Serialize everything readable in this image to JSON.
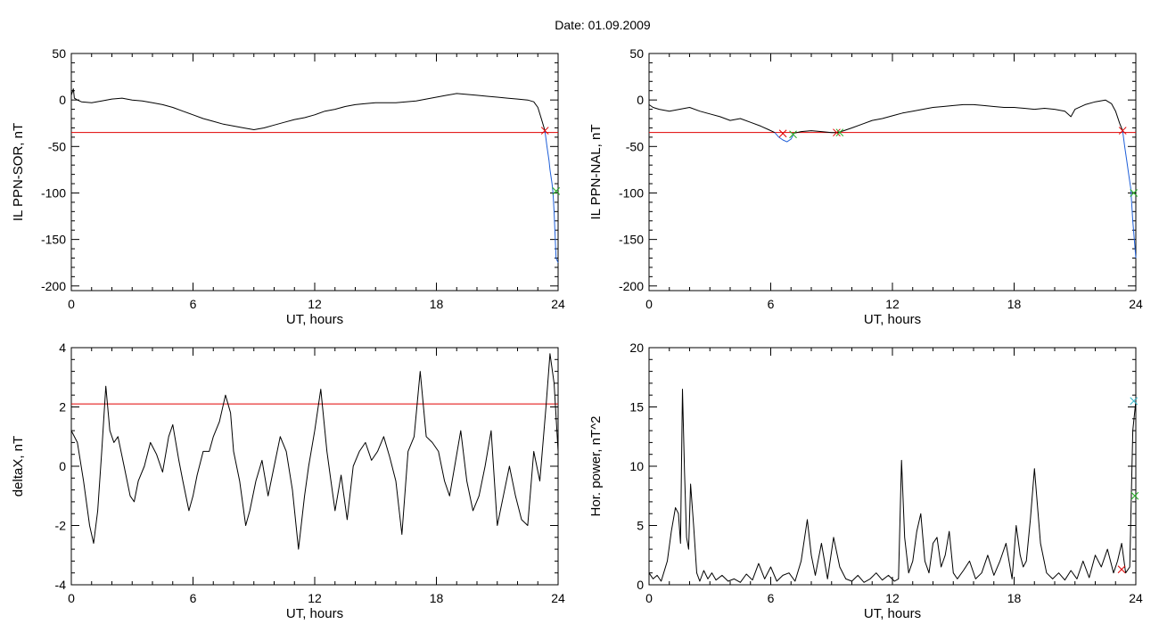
{
  "figure": {
    "title": "Date:  01.09.2009"
  },
  "colors": {
    "series": "#000000",
    "threshold": "#e00000",
    "segment": "#1f5fd8",
    "marker_green": "#22aa22",
    "marker_cyan": "#33b5c8"
  },
  "chart_data": [
    {
      "type": "line",
      "ylabel": "IL PPN-SOR, nT",
      "xlabel": "UT, hours",
      "xlim": [
        0,
        24
      ],
      "ylim": [
        -205,
        50
      ],
      "xticks": [
        0,
        6,
        12,
        18,
        24
      ],
      "yticks": [
        50,
        0,
        -50,
        -100,
        -150,
        -200
      ],
      "grid": false,
      "threshold": -35,
      "series": [
        {
          "color": "#000000",
          "x": [
            0,
            0.1,
            0.15,
            0.3,
            0.5,
            1.0,
            1.5,
            2.0,
            2.5,
            3.0,
            3.5,
            4.0,
            4.5,
            5.0,
            5.5,
            6.0,
            6.5,
            7.0,
            7.5,
            8.0,
            8.5,
            9.0,
            9.5,
            10.0,
            10.5,
            11.0,
            11.5,
            12.0,
            12.5,
            13.0,
            13.5,
            14.0,
            14.5,
            15.0,
            15.5,
            16.0,
            16.5,
            17.0,
            17.5,
            18.0,
            18.5,
            19.0,
            19.5,
            20.0,
            20.5,
            21.0,
            21.5,
            22.0,
            22.5,
            22.8,
            23.0,
            23.2,
            23.35
          ],
          "y": [
            5,
            12,
            2,
            0,
            -2,
            -3,
            -1,
            1,
            2,
            0,
            -1,
            -3,
            -5,
            -8,
            -12,
            -16,
            -20,
            -23,
            -26,
            -28,
            -30,
            -32,
            -30,
            -27,
            -24,
            -21,
            -19,
            -16,
            -12,
            -10,
            -7,
            -5,
            -4,
            -3,
            -3,
            -3,
            -2,
            -1,
            1,
            3,
            5,
            7,
            6,
            5,
            4,
            3,
            2,
            1,
            0,
            -2,
            -8,
            -22,
            -33
          ]
        },
        {
          "color": "#1f5fd8",
          "x": [
            23.35,
            23.45,
            23.55,
            23.6,
            23.7,
            23.75,
            23.8,
            23.9,
            24.0
          ],
          "y": [
            -33,
            -50,
            -65,
            -75,
            -90,
            -100,
            -120,
            -170,
            -175
          ]
        }
      ],
      "markers": [
        {
          "x": 23.35,
          "y": -33,
          "symbol": "x",
          "color": "#e00000"
        },
        {
          "x": 23.9,
          "y": -98,
          "symbol": "x",
          "color": "#22aa22"
        }
      ]
    },
    {
      "type": "line",
      "ylabel": "IL PPN-NAL, nT",
      "xlabel": "UT, hours",
      "xlim": [
        0,
        24
      ],
      "ylim": [
        -205,
        50
      ],
      "xticks": [
        0,
        6,
        12,
        18,
        24
      ],
      "yticks": [
        50,
        0,
        -50,
        -100,
        -150,
        -200
      ],
      "grid": false,
      "threshold": -35,
      "series": [
        {
          "color": "#000000",
          "x": [
            0,
            0.2,
            0.5,
            1.0,
            1.5,
            2.0,
            2.5,
            3.0,
            3.5,
            4.0,
            4.5,
            5.0,
            5.5,
            5.9,
            6.2
          ],
          "y": [
            -5,
            -8,
            -10,
            -12,
            -10,
            -8,
            -12,
            -15,
            -18,
            -22,
            -20,
            -24,
            -28,
            -32,
            -35
          ]
        },
        {
          "color": "#1f5fd8",
          "x": [
            6.2,
            6.4,
            6.6,
            6.8,
            7.0,
            7.1
          ],
          "y": [
            -35,
            -40,
            -43,
            -45,
            -42,
            -38
          ]
        },
        {
          "color": "#000000",
          "x": [
            7.1,
            7.5,
            8.0,
            8.5,
            9.0,
            9.3,
            9.6,
            10.0,
            10.5,
            11.0,
            11.5,
            12.0,
            12.5,
            13.0,
            13.5,
            14.0,
            14.5,
            15.0,
            15.5,
            16.0,
            16.5,
            17.0,
            17.5,
            18.0,
            18.5,
            19.0,
            19.5,
            20.0,
            20.5,
            20.8,
            21.0,
            21.5,
            22.0,
            22.5,
            22.8,
            23.0,
            23.2,
            23.35
          ],
          "y": [
            -36,
            -34,
            -33,
            -34,
            -35,
            -35,
            -33,
            -30,
            -26,
            -22,
            -20,
            -17,
            -14,
            -12,
            -10,
            -8,
            -7,
            -6,
            -5,
            -5,
            -6,
            -7,
            -8,
            -8,
            -9,
            -10,
            -9,
            -10,
            -12,
            -18,
            -10,
            -5,
            -2,
            0,
            -4,
            -12,
            -25,
            -33
          ]
        },
        {
          "color": "#1f5fd8",
          "x": [
            23.35,
            23.45,
            23.55,
            23.65,
            23.75,
            23.85,
            24.0
          ],
          "y": [
            -33,
            -50,
            -65,
            -80,
            -95,
            -130,
            -170
          ]
        }
      ],
      "markers": [
        {
          "x": 6.6,
          "y": -36,
          "symbol": "x",
          "color": "#e00000"
        },
        {
          "x": 7.1,
          "y": -37,
          "symbol": "x",
          "color": "#22aa22"
        },
        {
          "x": 9.25,
          "y": -35,
          "symbol": "x",
          "color": "#e00000"
        },
        {
          "x": 9.4,
          "y": -35,
          "symbol": "x",
          "color": "#22aa22"
        },
        {
          "x": 23.35,
          "y": -33,
          "symbol": "x",
          "color": "#e00000"
        },
        {
          "x": 23.9,
          "y": -100,
          "symbol": "x",
          "color": "#22aa22"
        }
      ]
    },
    {
      "type": "line",
      "ylabel": "deltaX, nT",
      "xlabel": "UT, hours",
      "xlim": [
        0,
        24
      ],
      "ylim": [
        -4,
        4
      ],
      "xticks": [
        0,
        6,
        12,
        18,
        24
      ],
      "yticks": [
        4,
        2,
        0,
        -2,
        -4
      ],
      "grid": false,
      "threshold": 2.1,
      "series": [
        {
          "color": "#000000",
          "x": [
            0,
            0.3,
            0.6,
            0.9,
            1.1,
            1.3,
            1.5,
            1.7,
            1.9,
            2.1,
            2.3,
            2.6,
            2.9,
            3.1,
            3.3,
            3.6,
            3.9,
            4.2,
            4.5,
            4.8,
            5.0,
            5.3,
            5.5,
            5.8,
            6.0,
            6.2,
            6.5,
            6.8,
            7.0,
            7.3,
            7.6,
            7.85,
            8.0,
            8.3,
            8.6,
            8.8,
            9.1,
            9.4,
            9.7,
            10.0,
            10.3,
            10.6,
            10.9,
            11.2,
            11.5,
            11.7,
            12.0,
            12.3,
            12.6,
            12.8,
            13.0,
            13.3,
            13.6,
            13.9,
            14.2,
            14.5,
            14.8,
            15.1,
            15.4,
            15.7,
            16.0,
            16.3,
            16.6,
            16.9,
            17.2,
            17.5,
            17.8,
            18.1,
            18.4,
            18.65,
            18.9,
            19.2,
            19.5,
            19.8,
            20.1,
            20.4,
            20.7,
            21.0,
            21.3,
            21.6,
            21.9,
            22.2,
            22.5,
            22.8,
            23.1,
            23.4,
            23.6,
            23.8,
            24.0
          ],
          "y": [
            1.2,
            0.8,
            -0.5,
            -2.0,
            -2.6,
            -1.5,
            0.5,
            2.7,
            1.2,
            0.8,
            1.0,
            0.0,
            -1.0,
            -1.2,
            -0.5,
            0.0,
            0.8,
            0.4,
            -0.2,
            1.0,
            1.4,
            0.2,
            -0.5,
            -1.5,
            -1.0,
            -0.3,
            0.5,
            0.5,
            1.0,
            1.5,
            2.4,
            1.8,
            0.5,
            -0.5,
            -2.0,
            -1.5,
            -0.5,
            0.2,
            -1.0,
            0.0,
            1.0,
            0.5,
            -0.8,
            -2.8,
            -1.0,
            0.0,
            1.2,
            2.6,
            0.5,
            -0.5,
            -1.5,
            -0.3,
            -1.8,
            0.0,
            0.5,
            0.8,
            0.2,
            0.5,
            1.0,
            0.3,
            -0.5,
            -2.3,
            0.5,
            1.0,
            3.2,
            1.0,
            0.8,
            0.5,
            -0.5,
            -1.0,
            0.0,
            1.2,
            -0.5,
            -1.5,
            -1.0,
            0.0,
            1.2,
            -2.0,
            -1.0,
            0.0,
            -1.0,
            -1.8,
            -2.0,
            0.5,
            -0.5,
            2.0,
            3.8,
            2.8,
            0.5
          ]
        }
      ],
      "markers": []
    },
    {
      "type": "line",
      "ylabel": "Hor. power, nT^2",
      "xlabel": "UT, hours",
      "xlim": [
        0,
        24
      ],
      "ylim": [
        0,
        20
      ],
      "xticks": [
        0,
        6,
        12,
        18,
        24
      ],
      "yticks": [
        20,
        15,
        10,
        5,
        0
      ],
      "grid": false,
      "series": [
        {
          "color": "#000000",
          "x": [
            0,
            0.2,
            0.4,
            0.6,
            0.9,
            1.1,
            1.3,
            1.45,
            1.55,
            1.65,
            1.75,
            1.85,
            1.95,
            2.05,
            2.2,
            2.35,
            2.5,
            2.7,
            2.9,
            3.1,
            3.3,
            3.6,
            3.9,
            4.2,
            4.5,
            4.8,
            5.1,
            5.4,
            5.7,
            6.0,
            6.3,
            6.6,
            6.9,
            7.2,
            7.5,
            7.8,
            8.0,
            8.2,
            8.5,
            8.8,
            9.1,
            9.4,
            9.7,
            10.0,
            10.3,
            10.6,
            10.9,
            11.2,
            11.5,
            11.8,
            12.1,
            12.3,
            12.45,
            12.6,
            12.8,
            13.0,
            13.2,
            13.4,
            13.6,
            13.8,
            14.0,
            14.2,
            14.4,
            14.6,
            14.8,
            15.0,
            15.2,
            15.5,
            15.8,
            16.1,
            16.4,
            16.7,
            17.0,
            17.3,
            17.6,
            17.9,
            18.1,
            18.3,
            18.45,
            18.6,
            18.8,
            19.0,
            19.3,
            19.6,
            19.9,
            20.2,
            20.5,
            20.8,
            21.1,
            21.4,
            21.7,
            22.0,
            22.3,
            22.6,
            22.9,
            23.1,
            23.3,
            23.5,
            23.7,
            23.85,
            24.0
          ],
          "y": [
            1.0,
            0.5,
            0.8,
            0.3,
            2.0,
            4.5,
            6.5,
            6.0,
            3.5,
            16.5,
            9.5,
            4.0,
            3.0,
            8.5,
            5.0,
            1.0,
            0.3,
            1.2,
            0.5,
            1.0,
            0.4,
            0.8,
            0.3,
            0.5,
            0.2,
            0.9,
            0.4,
            1.8,
            0.5,
            1.5,
            0.3,
            0.8,
            1.0,
            0.3,
            2.0,
            5.5,
            2.5,
            0.8,
            3.5,
            0.5,
            4.0,
            1.5,
            0.5,
            0.3,
            0.8,
            0.2,
            0.5,
            1.0,
            0.4,
            0.8,
            0.3,
            0.5,
            10.5,
            4.0,
            1.0,
            2.0,
            4.5,
            6.0,
            2.0,
            1.0,
            3.5,
            4.0,
            1.5,
            2.5,
            4.5,
            1.0,
            0.5,
            1.2,
            2.0,
            0.5,
            1.0,
            2.5,
            0.8,
            2.0,
            3.5,
            0.5,
            5.0,
            2.5,
            1.5,
            2.0,
            5.5,
            9.8,
            3.5,
            1.0,
            0.5,
            1.0,
            0.4,
            1.2,
            0.5,
            2.0,
            0.6,
            2.5,
            1.5,
            3.0,
            1.0,
            2.0,
            3.5,
            1.0,
            1.5,
            13.0,
            15.5
          ]
        }
      ],
      "markers": [
        {
          "x": 23.9,
          "y": 15.5,
          "symbol": "x",
          "color": "#33b5c8"
        },
        {
          "x": 23.3,
          "y": 1.3,
          "symbol": "x",
          "color": "#e00000"
        },
        {
          "x": 23.95,
          "y": 7.5,
          "symbol": "x",
          "color": "#22aa22"
        }
      ]
    }
  ]
}
